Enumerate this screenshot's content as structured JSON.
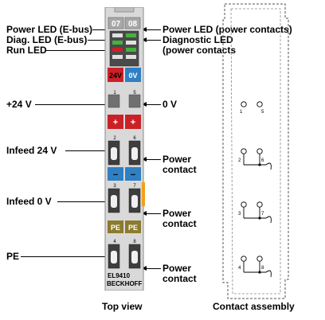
{
  "left_labels": {
    "power_led_ebus": "Power LED (E-bus)",
    "diag_led_ebus": "Diag. LED (E-bus)",
    "run_led": "Run LED",
    "plus_24v": "+24 V",
    "infeed_24v": "Infeed 24 V",
    "infeed_0v": "Infeed 0 V",
    "pe": "PE"
  },
  "right_labels": {
    "power_led_power_contacts": "Power LED (power contacts)",
    "diagnostic_led_line1": "Diagnostic LED",
    "diagnostic_led_line2": "(power contacts",
    "zero_v": "0 V",
    "power_contact_1_line1": "Power",
    "power_contact_1_line2": "contact",
    "power_contact_2_line1": "Power",
    "power_contact_2_line2": "contact",
    "power_contact_3_line1": "Power",
    "power_contact_3_line2": "contact"
  },
  "terminal": {
    "led_numbers": [
      "07",
      "08"
    ],
    "tag_24v": "24V",
    "tag_0v": "0V",
    "tag_plus_left": "+",
    "tag_plus_right": "+",
    "tag_minus_left": "−",
    "tag_minus_right": "−",
    "tag_pe_left": "PE",
    "tag_pe_right": "PE",
    "contact_numbers": [
      "1",
      "5",
      "2",
      "6",
      "3",
      "7",
      "4",
      "8"
    ],
    "model": "EL9410",
    "brand": "BECKHOFF"
  },
  "assembly": {
    "contact_numbers": [
      "1",
      "5",
      "2",
      "6",
      "3",
      "7",
      "4",
      "8"
    ]
  },
  "captions": {
    "top_view": "Top view",
    "contact_assembly": "Contact assembly"
  },
  "colors": {
    "red": "#cc2027",
    "blue": "#2f7fc4",
    "olive": "#8c7b2c",
    "orange": "#f5a01a",
    "body": "#d9d9d9"
  }
}
